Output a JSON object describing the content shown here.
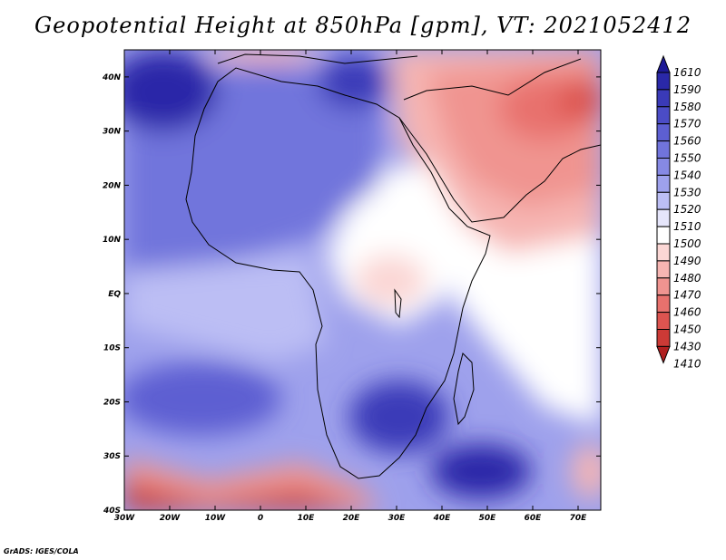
{
  "title": "Geopotential Height at 850hPa [gpm], VT: 2021052412",
  "credit": "GrADS: IGES/COLA",
  "lat_labels": [
    "40N",
    "30N",
    "20N",
    "10N",
    "EQ",
    "10S",
    "20S",
    "30S",
    "40S"
  ],
  "lat_values": [
    40,
    30,
    20,
    10,
    0,
    -10,
    -20,
    -30,
    -40
  ],
  "lon_labels": [
    "30W",
    "20W",
    "10W",
    "0",
    "10E",
    "20E",
    "30E",
    "40E",
    "50E",
    "60E",
    "70E"
  ],
  "lon_values": [
    -30,
    -20,
    -10,
    0,
    10,
    20,
    30,
    40,
    50,
    60,
    70
  ],
  "map_extent": {
    "lon_min": -30,
    "lon_max": 75,
    "lat_min": -40,
    "lat_max": 45
  },
  "colorbar": {
    "levels": [
      "1610",
      "1590",
      "1580",
      "1570",
      "1560",
      "1550",
      "1540",
      "1530",
      "1520",
      "1510",
      "1500",
      "1490",
      "1480",
      "1470",
      "1460",
      "1450",
      "1430",
      "1410"
    ],
    "colors": [
      "#1e1a96",
      "#2a28a8",
      "#3a3ab8",
      "#4b4cc6",
      "#5d5fd2",
      "#7174dc",
      "#8689e4",
      "#9ea1ec",
      "#bcbef4",
      "#e6e6fb",
      "#ffffff",
      "#fbd7d5",
      "#f6b5b2",
      "#f09490",
      "#e8716d",
      "#dd5450",
      "#cc3a36",
      "#b01f1f"
    ]
  },
  "colors": {
    "background": "#ffffff",
    "text": "#000000"
  }
}
